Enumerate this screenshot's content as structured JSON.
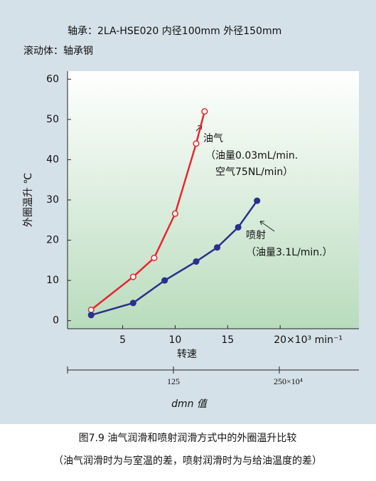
{
  "chart_data": {
    "type": "line",
    "title": "轴承：2LA-HSE020 内径100mm 外径150mm",
    "subtitle": "滚动体：轴承钢",
    "ylabel": "外圈温升 ℃",
    "xlabel": "转速",
    "x2label": "dmn 值",
    "xlim": [
      -0.25,
      27.5
    ],
    "xticks": [
      5,
      10,
      15,
      {
        "value": 20,
        "label": "20×10³ min⁻¹"
      }
    ],
    "ylim": [
      -2,
      62
    ],
    "yticks": [
      0,
      10,
      20,
      30,
      40,
      50,
      60
    ],
    "x2lim": [
      0,
      344
    ],
    "x2ticks": [
      125,
      {
        "value": 250,
        "label": "250×10⁴"
      }
    ],
    "series": [
      {
        "name": "油气",
        "color": "#e8262b",
        "marker": "open",
        "x": [
          2,
          6,
          8,
          10,
          12,
          12.8
        ],
        "values": [
          2.7,
          10.9,
          15.6,
          26.6,
          44,
          52
        ]
      },
      {
        "name": "喷射",
        "color": "#28318c",
        "marker": "filled",
        "x": [
          2,
          6,
          9,
          12,
          14,
          16,
          17.8
        ],
        "values": [
          1.4,
          4.4,
          10,
          14.7,
          18.2,
          23.2,
          29.8
        ]
      }
    ],
    "annotations": [
      "（油量0.03mL/min.",
      "空气75NL/min）",
      "（油量3.1L/min.）"
    ],
    "caption": [
      "图7.9 油气润滑和喷射润滑方式中的外圈温升比较",
      "（油气润滑时为与室温的差，喷射润滑时为与给油温度的差）"
    ]
  }
}
